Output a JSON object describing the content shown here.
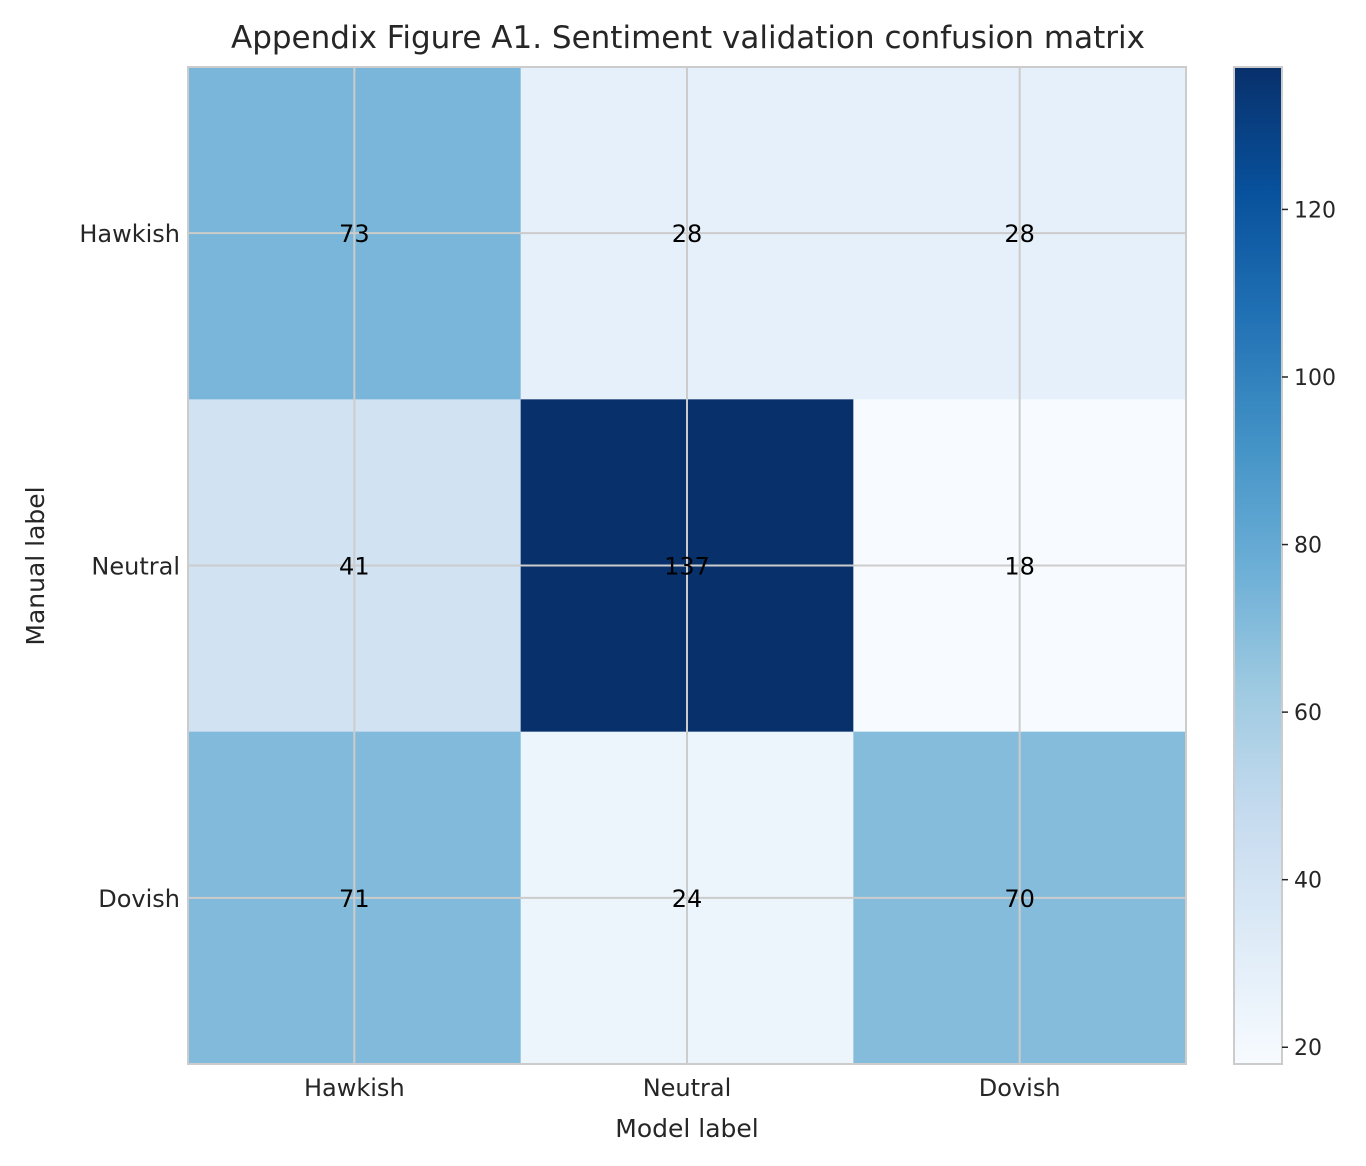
{
  "chart_data": {
    "type": "heatmap",
    "title": "Appendix Figure A1. Sentiment validation confusion matrix",
    "xlabel": "Model label",
    "ylabel": "Manual label",
    "x_categories": [
      "Hawkish",
      "Neutral",
      "Dovish"
    ],
    "y_categories": [
      "Hawkish",
      "Neutral",
      "Dovish"
    ],
    "values": [
      [
        73,
        28,
        28
      ],
      [
        41,
        137,
        18
      ],
      [
        71,
        24,
        70
      ]
    ],
    "colormap": "Blues",
    "colorbar": {
      "min": 18,
      "max": 137,
      "ticks": [
        20,
        40,
        60,
        80,
        100,
        120
      ]
    },
    "grid": true
  }
}
